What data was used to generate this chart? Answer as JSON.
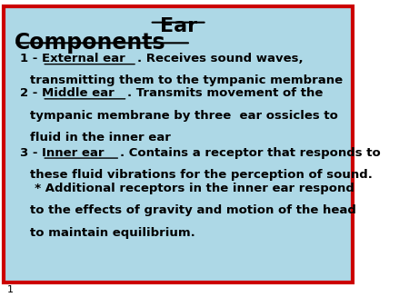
{
  "title": "Ear",
  "background_color": "#add8e6",
  "border_color": "#cc0000",
  "text_color": "#000000",
  "figsize": [
    4.5,
    3.38
  ],
  "dpi": 100,
  "components_label": "Components",
  "footnote": "1"
}
